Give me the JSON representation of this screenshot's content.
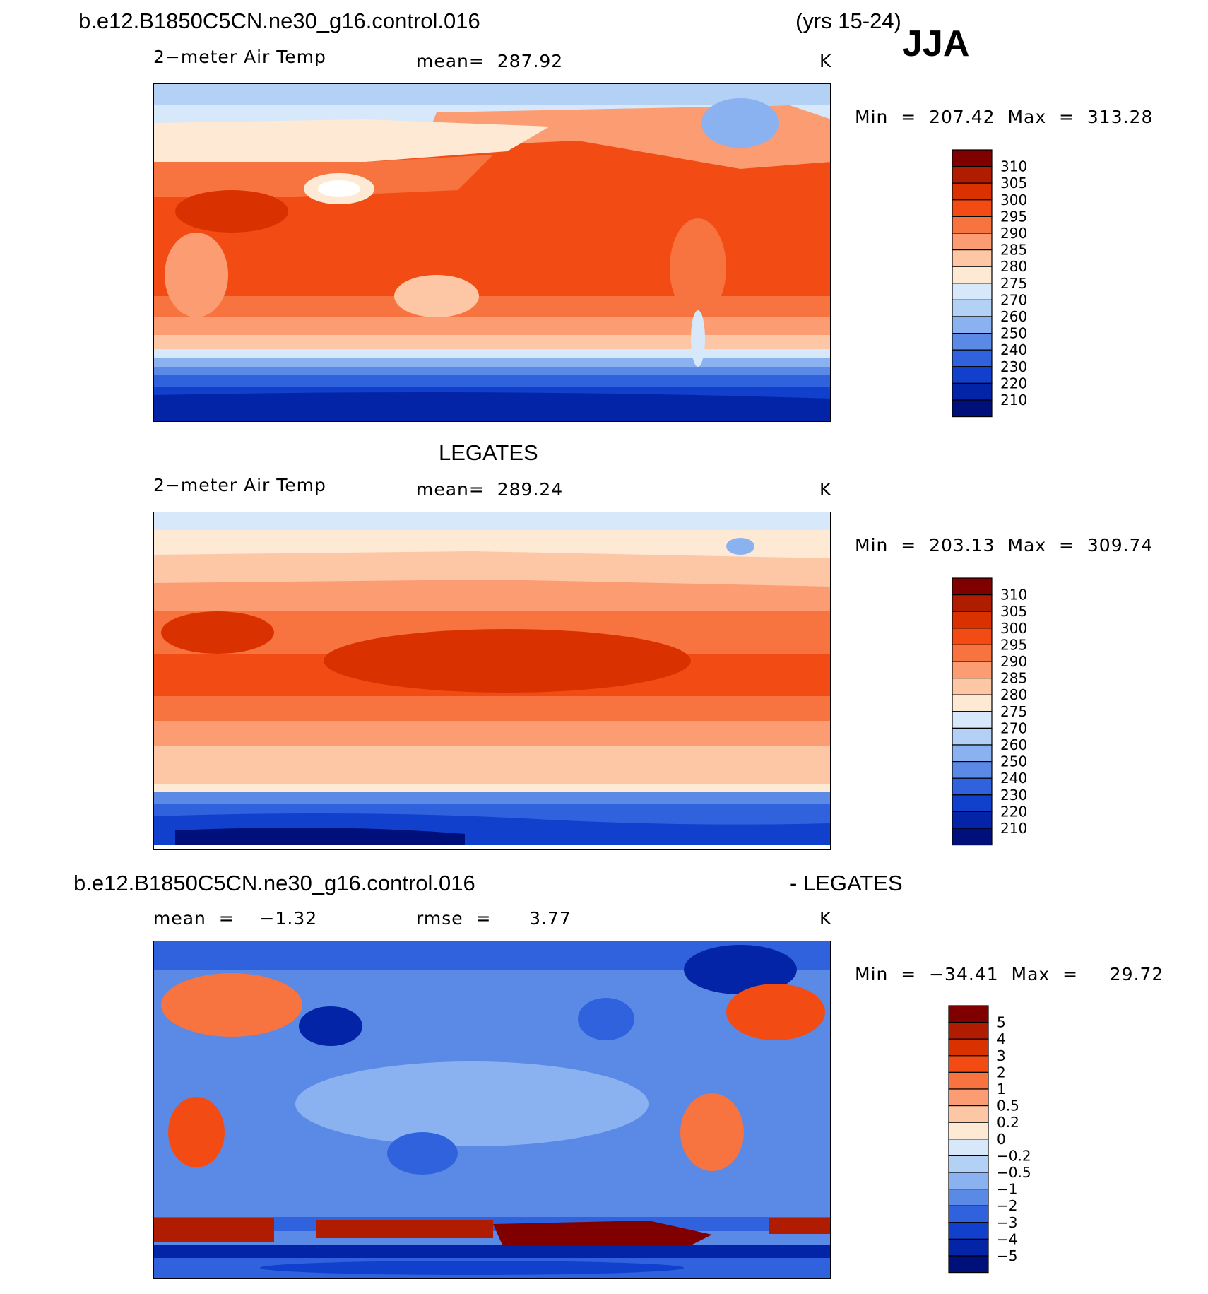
{
  "header": {
    "case_name": "b.e12.B1850C5CN.ne30_g16.control.016",
    "years": "(yrs 15-24)",
    "season": "JJA"
  },
  "panels": [
    {
      "id": "model",
      "title": "",
      "variable": "2−meter Air Temp",
      "stat_text": "mean=  287.92",
      "units": "K",
      "minmax": "Min  =  207.42  Max  =  313.28"
    },
    {
      "id": "obs",
      "title": "LEGATES",
      "variable": "2−meter Air Temp",
      "stat_text": "mean=  289.24",
      "units": "K",
      "minmax": "Min  =  203.13  Max  =  309.74"
    },
    {
      "id": "diff",
      "title_left": "b.e12.B1850C5CN.ne30_g16.control.016",
      "title_right": "- LEGATES",
      "mean_text": "mean  =    −1.32",
      "rmse_text": "rmse  =      3.77",
      "units": "K",
      "minmax": "Min  =  −34.41  Max  =     29.72"
    }
  ],
  "chart_data": [
    {
      "type": "heatmap",
      "title": "2−meter Air Temp",
      "units": "K",
      "mean": 287.92,
      "min": 207.42,
      "max": 313.28,
      "colorbar": {
        "levels": [
          "310",
          "305",
          "300",
          "295",
          "290",
          "285",
          "280",
          "275",
          "270",
          "260",
          "250",
          "240",
          "230",
          "220",
          "210"
        ],
        "colors": [
          "#800000",
          "#b01c00",
          "#d93200",
          "#f24c14",
          "#f77340",
          "#fb9c72",
          "#fdc6a4",
          "#fde9d4",
          "#d7e8fa",
          "#b3d0f5",
          "#8ab2f0",
          "#5a8ae6",
          "#2f62dc",
          "#1140cc",
          "#0424a8",
          "#00107a"
        ]
      }
    },
    {
      "type": "heatmap",
      "title": "2−meter Air Temp",
      "units": "K",
      "mean": 289.24,
      "min": 203.13,
      "max": 309.74,
      "colorbar": {
        "levels": [
          "310",
          "305",
          "300",
          "295",
          "290",
          "285",
          "280",
          "275",
          "270",
          "260",
          "250",
          "240",
          "230",
          "220",
          "210"
        ],
        "colors": [
          "#800000",
          "#b01c00",
          "#d93200",
          "#f24c14",
          "#f77340",
          "#fb9c72",
          "#fdc6a4",
          "#fde9d4",
          "#d7e8fa",
          "#b3d0f5",
          "#8ab2f0",
          "#5a8ae6",
          "#2f62dc",
          "#1140cc",
          "#0424a8",
          "#00107a"
        ]
      }
    },
    {
      "type": "heatmap",
      "units": "K",
      "mean": -1.32,
      "rmse": 3.77,
      "min": -34.41,
      "max": 29.72,
      "colorbar": {
        "levels": [
          "5",
          "4",
          "3",
          "2",
          "1",
          "0.5",
          "0.2",
          "0",
          "−0.2",
          "−0.5",
          "−1",
          "−2",
          "−3",
          "−4",
          "−5"
        ],
        "colors": [
          "#800000",
          "#b01c00",
          "#d93200",
          "#f24c14",
          "#f77340",
          "#fb9c72",
          "#fdc6a4",
          "#fde9d4",
          "#d7e8fa",
          "#b3d0f5",
          "#8ab2f0",
          "#5a8ae6",
          "#2f62dc",
          "#1140cc",
          "#0424a8",
          "#00107a"
        ]
      }
    }
  ]
}
